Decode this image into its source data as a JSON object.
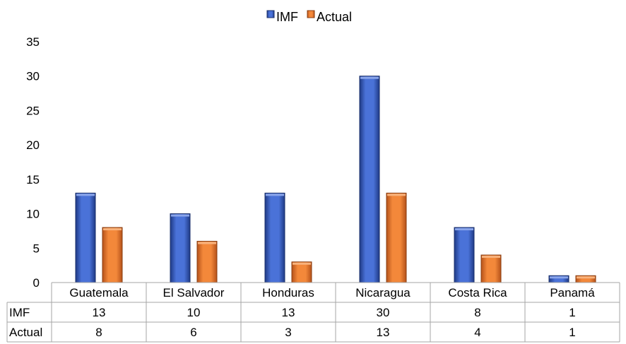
{
  "chart_data": {
    "type": "bar",
    "categories": [
      "Guatemala",
      "El Salvador",
      "Honduras",
      "Nicaragua",
      "Costa Rica",
      "Panamá"
    ],
    "series": [
      {
        "name": "IMF",
        "values": [
          13,
          10,
          13,
          30,
          8,
          1
        ],
        "color": "#3d63c8"
      },
      {
        "name": "Actual",
        "values": [
          8,
          6,
          3,
          13,
          4,
          1
        ],
        "color": "#ee7a2a"
      }
    ],
    "ylim": [
      0,
      35
    ],
    "yticks": [
      0,
      5,
      10,
      15,
      20,
      25,
      30,
      35
    ],
    "grid": false,
    "legend": "top-center",
    "data_table": true
  }
}
